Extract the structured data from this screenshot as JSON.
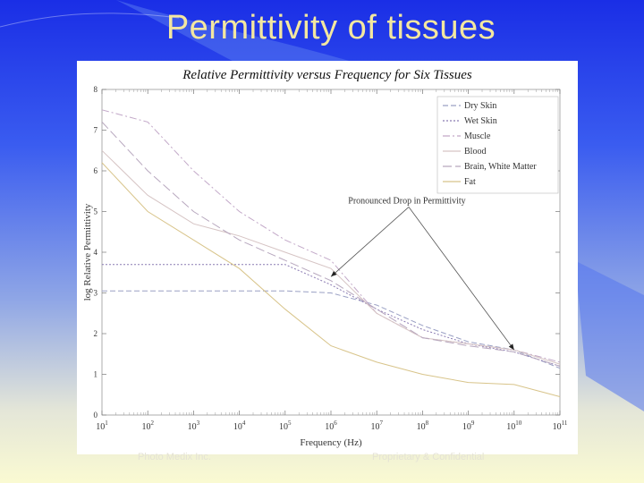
{
  "slide": {
    "title": "Permittivity of tissues",
    "footer_left": "Photo Medix Inc.",
    "footer_right": "Proprietary & Confidential",
    "colors": {
      "title": "#f3e7a0",
      "background_top": "#1a2ee6",
      "background_bottom": "#fafad2"
    }
  },
  "chart_data": {
    "type": "line",
    "title": "Relative Permittivity versus Frequency for Six Tissues",
    "xlabel": "Frequency (Hz)",
    "ylabel": "log Relative Permittivity",
    "x_scale": "log",
    "xlim": [
      10,
      100000000000
    ],
    "ylim": [
      0,
      8
    ],
    "x_ticks": [
      {
        "value": 10,
        "base": "10",
        "exp": "1"
      },
      {
        "value": 100,
        "base": "10",
        "exp": "2"
      },
      {
        "value": 1000,
        "base": "10",
        "exp": "3"
      },
      {
        "value": 10000,
        "base": "10",
        "exp": "4"
      },
      {
        "value": 100000,
        "base": "10",
        "exp": "5"
      },
      {
        "value": 1000000,
        "base": "10",
        "exp": "6"
      },
      {
        "value": 10000000,
        "base": "10",
        "exp": "7"
      },
      {
        "value": 100000000,
        "base": "10",
        "exp": "8"
      },
      {
        "value": 1000000000,
        "base": "10",
        "exp": "9"
      },
      {
        "value": 10000000000,
        "base": "10",
        "exp": "10"
      },
      {
        "value": 100000000000,
        "base": "10",
        "exp": "11"
      }
    ],
    "y_ticks": [
      "0",
      "1",
      "2",
      "3",
      "4",
      "5",
      "6",
      "7",
      "8"
    ],
    "grid": false,
    "legend_position": "top-right",
    "series": [
      {
        "name": "Dry Skin",
        "color": "#9aa0c4",
        "dash": "6 3",
        "points": [
          [
            10,
            3.05
          ],
          [
            100,
            3.05
          ],
          [
            1000,
            3.05
          ],
          [
            10000,
            3.05
          ],
          [
            100000,
            3.05
          ],
          [
            1000000,
            3.0
          ],
          [
            10000000,
            2.7
          ],
          [
            100000000,
            2.2
          ],
          [
            1000000000,
            1.8
          ],
          [
            10000000000,
            1.6
          ],
          [
            100000000000,
            1.15
          ]
        ]
      },
      {
        "name": "Wet Skin",
        "color": "#8a7ab2",
        "dash": "2 2",
        "points": [
          [
            10,
            3.7
          ],
          [
            100,
            3.7
          ],
          [
            1000,
            3.7
          ],
          [
            10000,
            3.7
          ],
          [
            100000,
            3.7
          ],
          [
            1000000,
            3.2
          ],
          [
            10000000,
            2.6
          ],
          [
            100000000,
            2.1
          ],
          [
            1000000000,
            1.75
          ],
          [
            10000000000,
            1.55
          ],
          [
            100000000000,
            1.2
          ]
        ]
      },
      {
        "name": "Muscle",
        "color": "#c2a8c8",
        "dash": "8 3 2 3",
        "points": [
          [
            10,
            7.5
          ],
          [
            100,
            7.2
          ],
          [
            1000,
            6.0
          ],
          [
            10000,
            5.0
          ],
          [
            100000,
            4.3
          ],
          [
            1000000,
            3.8
          ],
          [
            10000000,
            2.5
          ],
          [
            100000000,
            1.9
          ],
          [
            1000000000,
            1.75
          ],
          [
            10000000000,
            1.6
          ],
          [
            100000000000,
            1.3
          ]
        ]
      },
      {
        "name": "Blood",
        "color": "#d6c4c4",
        "dash": "",
        "points": [
          [
            10,
            6.5
          ],
          [
            100,
            5.4
          ],
          [
            1000,
            4.7
          ],
          [
            10000,
            4.4
          ],
          [
            100000,
            4.0
          ],
          [
            1000000,
            3.6
          ],
          [
            10000000,
            2.5
          ],
          [
            100000000,
            1.9
          ],
          [
            1000000000,
            1.75
          ],
          [
            10000000000,
            1.6
          ],
          [
            100000000000,
            1.25
          ]
        ]
      },
      {
        "name": "Brain, White Matter",
        "color": "#b7a7be",
        "dash": "10 4",
        "points": [
          [
            10,
            7.2
          ],
          [
            100,
            6.0
          ],
          [
            1000,
            5.0
          ],
          [
            10000,
            4.3
          ],
          [
            100000,
            3.8
          ],
          [
            1000000,
            3.3
          ],
          [
            10000000,
            2.6
          ],
          [
            100000000,
            1.9
          ],
          [
            1000000000,
            1.7
          ],
          [
            10000000000,
            1.55
          ],
          [
            100000000000,
            1.2
          ]
        ]
      },
      {
        "name": "Fat",
        "color": "#d8c48a",
        "dash": "",
        "points": [
          [
            10,
            6.2
          ],
          [
            100,
            5.0
          ],
          [
            1000,
            4.3
          ],
          [
            10000,
            3.6
          ],
          [
            100000,
            2.6
          ],
          [
            1000000,
            1.7
          ],
          [
            10000000,
            1.3
          ],
          [
            100000000,
            1.0
          ],
          [
            1000000000,
            0.8
          ],
          [
            10000000000,
            0.75
          ],
          [
            100000000000,
            0.45
          ]
        ]
      }
    ],
    "annotations": [
      {
        "text": "Pronounced Drop in Permittivity",
        "anchor_x": 50000000,
        "anchor_y": 5.2,
        "arrows_to": [
          [
            1000000,
            3.4
          ],
          [
            10000000000,
            1.6
          ]
        ]
      }
    ]
  }
}
